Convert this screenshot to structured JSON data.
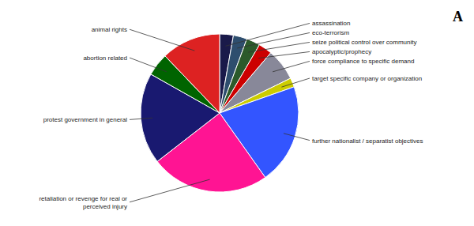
{
  "chart_data": {
    "type": "pie",
    "title": "A",
    "categories": [
      "assassination",
      "eco-terrorism",
      "seize political control over community",
      "apocalyptic/prophecy",
      "force compliance to specific demand",
      "target specific company or organization",
      "further nationalist / separatist objectives",
      "retaliation or revenge for real or\nperceived injury",
      "protest government in general",
      "abortion related",
      "animal rights"
    ],
    "values": [
      3,
      3,
      3,
      3,
      7,
      2,
      22,
      26,
      20,
      5,
      13
    ],
    "colors": [
      "#1a1a4a",
      "#2e4e6e",
      "#2b5a2b",
      "#cc0000",
      "#888899",
      "#cccc00",
      "#3355ff",
      "#ff1493",
      "#191970",
      "#006400",
      "#dd2222"
    ]
  }
}
